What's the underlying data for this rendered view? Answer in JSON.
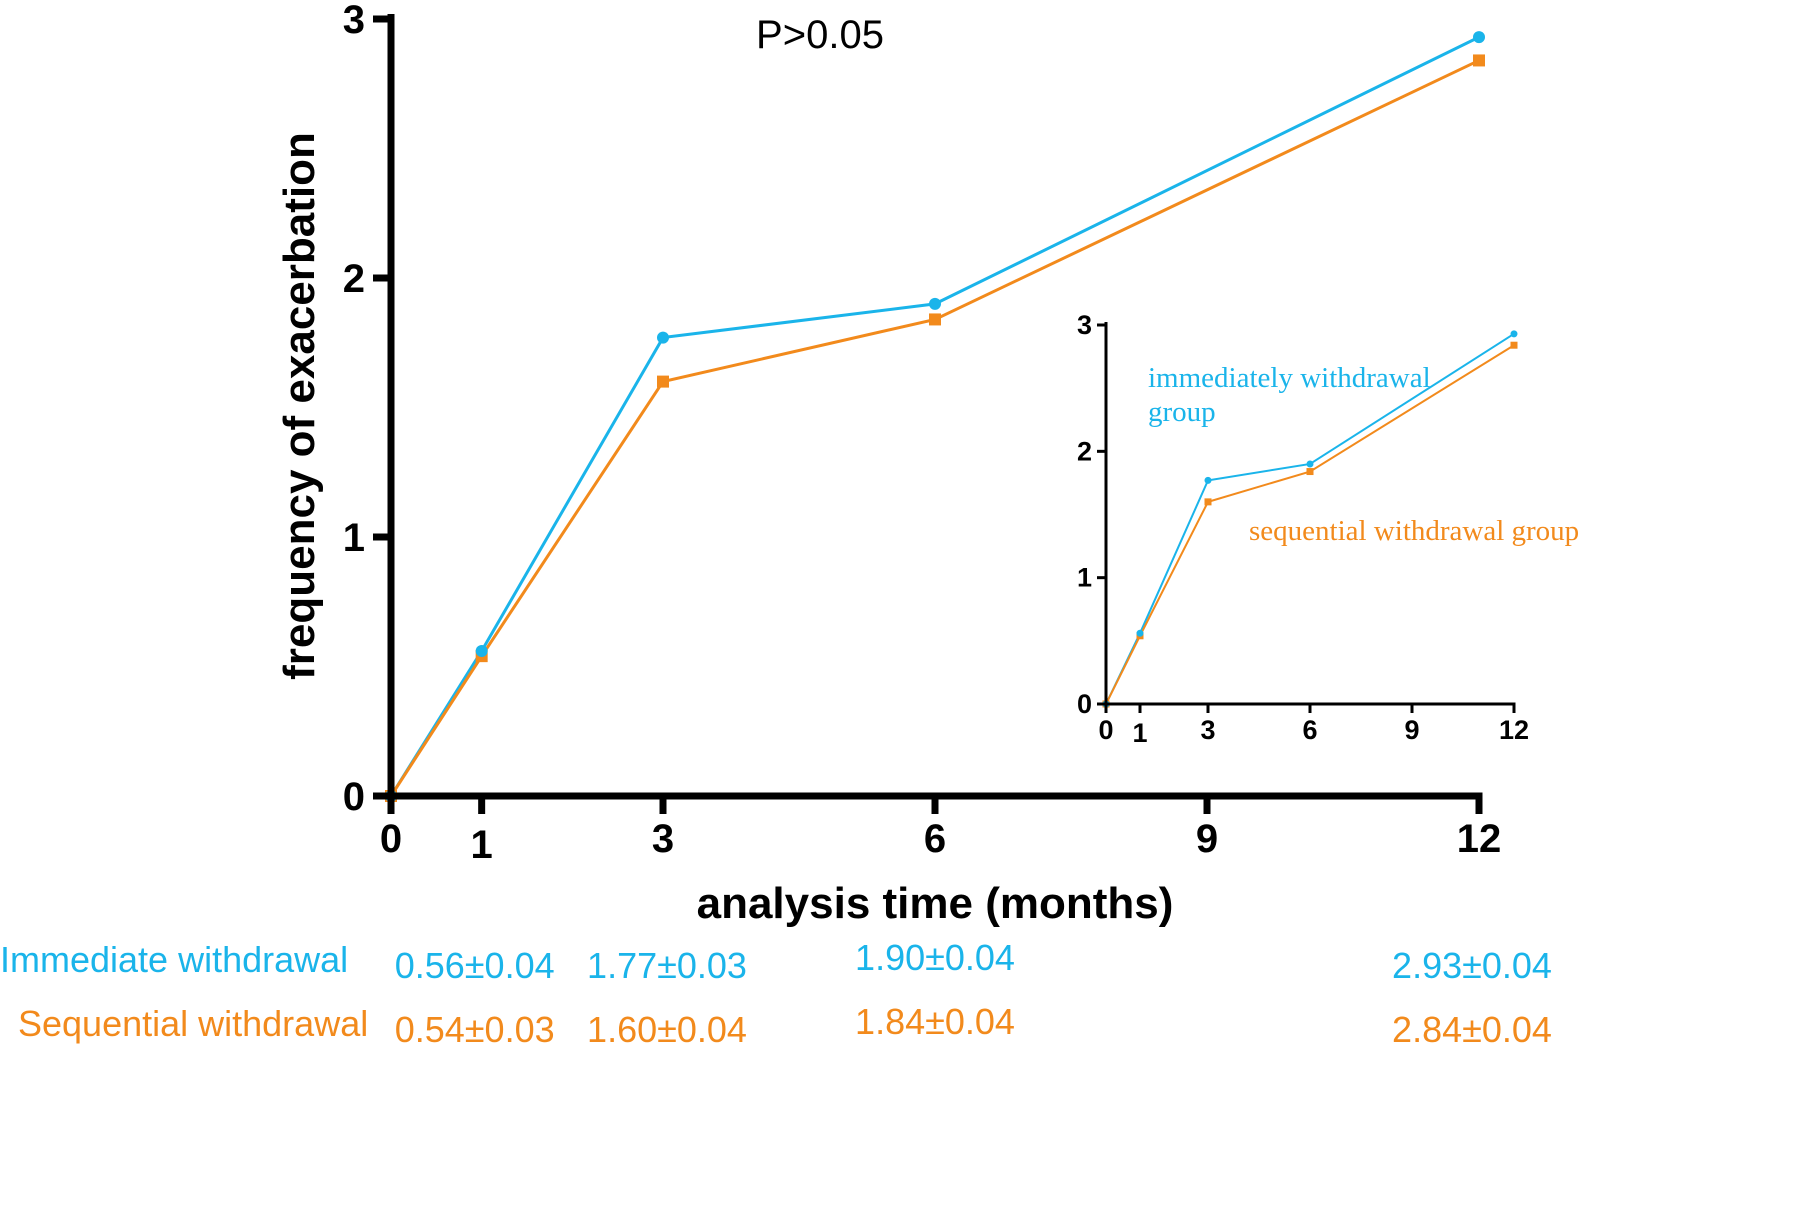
{
  "colors": {
    "immediate": "#1ab4ea",
    "sequential": "#f28a1c",
    "axis": "#000000"
  },
  "annotation": "P>0.05",
  "chart_data": [
    {
      "id": "main",
      "type": "line",
      "title": "",
      "xlabel": "analysis time (months)",
      "ylabel": "frequency of exacerbation",
      "xlim": [
        0,
        12
      ],
      "ylim": [
        0,
        3
      ],
      "x_ticks": [
        0,
        1,
        3,
        6,
        9,
        12
      ],
      "y_ticks": [
        0,
        1,
        2,
        3
      ],
      "x_tick_labels": [
        "0",
        "1",
        "3",
        "6",
        "9",
        "12"
      ],
      "y_tick_labels": [
        "0",
        "1",
        "2",
        "3"
      ],
      "series": [
        {
          "name": "Immediate withdrawal",
          "marker": "circle",
          "x": [
            0,
            1,
            3,
            6,
            12
          ],
          "values": [
            0,
            0.56,
            1.77,
            1.9,
            2.93
          ]
        },
        {
          "name": "Sequential withdrawal",
          "marker": "square",
          "x": [
            0,
            1,
            3,
            6,
            12
          ],
          "values": [
            0,
            0.54,
            1.6,
            1.84,
            2.84
          ]
        }
      ]
    },
    {
      "id": "inset",
      "type": "line",
      "xlim": [
        0,
        12
      ],
      "ylim": [
        0,
        3
      ],
      "x_ticks": [
        0,
        1,
        3,
        6,
        9,
        12
      ],
      "y_ticks": [
        0,
        1,
        2,
        3
      ],
      "x_tick_labels": [
        "0",
        "1",
        "3",
        "6",
        "9",
        "12"
      ],
      "y_tick_labels": [
        "0",
        "1",
        "2",
        "3"
      ],
      "legend": {
        "immediate_line1": "immediately withdrawal",
        "immediate_line2": "group",
        "sequential": "sequential withdrawal group"
      },
      "series": [
        {
          "name": "immediately withdrawal group",
          "marker": "circle",
          "x": [
            0,
            1,
            3,
            6,
            12
          ],
          "values": [
            0,
            0.56,
            1.77,
            1.9,
            2.93
          ]
        },
        {
          "name": "sequential withdrawal group",
          "marker": "square",
          "x": [
            0,
            1,
            3,
            6,
            12
          ],
          "values": [
            0,
            0.54,
            1.6,
            1.84,
            2.84
          ]
        }
      ]
    }
  ],
  "table": {
    "rows": [
      {
        "label": "Immediate withdrawal",
        "color_key": "immediate",
        "cells": [
          {
            "x": 1,
            "text": "0.56±0.04"
          },
          {
            "x": 3,
            "text": "1.77±0.03"
          },
          {
            "x": 6,
            "text": "1.90±0.04"
          },
          {
            "x": 12,
            "text": "2.93±0.04"
          }
        ]
      },
      {
        "label": "Sequential withdrawal",
        "color_key": "sequential",
        "cells": [
          {
            "x": 1,
            "text": "0.54±0.03"
          },
          {
            "x": 3,
            "text": "1.60±0.04"
          },
          {
            "x": 6,
            "text": "1.84±0.04"
          },
          {
            "x": 12,
            "text": "2.84±0.04"
          }
        ]
      }
    ]
  }
}
